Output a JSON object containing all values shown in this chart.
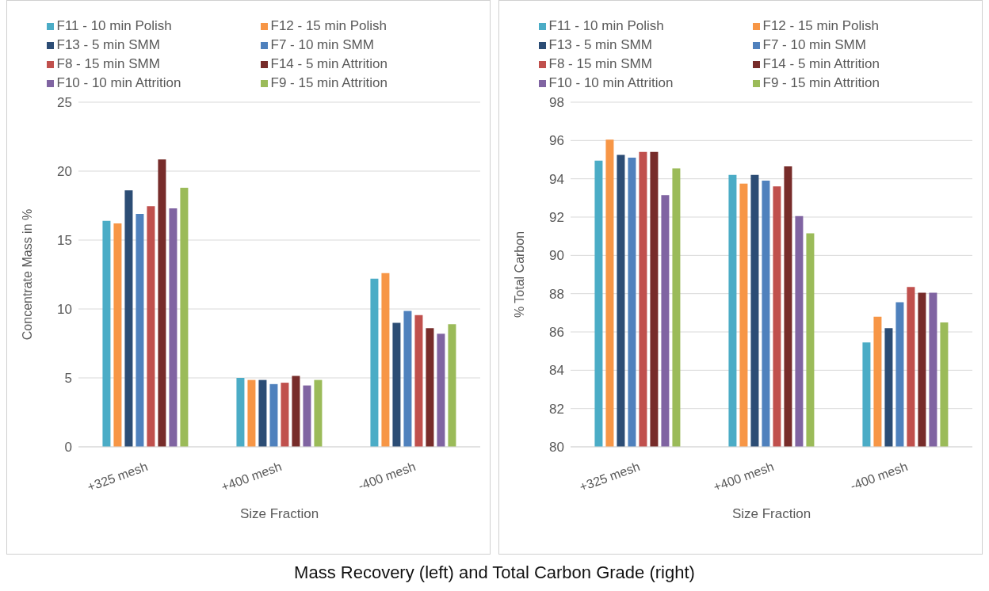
{
  "chart_data": [
    {
      "type": "bar",
      "xlabel": "Size Fraction",
      "ylabel": "Concentrate Mass in %",
      "categories": [
        "+325 mesh",
        "+400 mesh",
        "-400 mesh"
      ],
      "series": [
        {
          "name": "F11 - 10 min Polish",
          "color": "#4bacc6",
          "values": [
            16.4,
            5.0,
            12.2
          ]
        },
        {
          "name": "F12 - 15 min Polish",
          "color": "#f79646",
          "values": [
            16.2,
            4.85,
            12.6
          ]
        },
        {
          "name": "F13 - 5 min SMM",
          "color": "#2c4d75",
          "values": [
            18.6,
            4.85,
            9.0
          ]
        },
        {
          "name": "F7 - 10 min SMM",
          "color": "#4f81bd",
          "values": [
            16.9,
            4.55,
            9.85
          ]
        },
        {
          "name": "F8 - 15 min SMM",
          "color": "#c0504d",
          "values": [
            17.45,
            4.65,
            9.55
          ]
        },
        {
          "name": "F14 - 5 min Attrition",
          "color": "#772c2a",
          "values": [
            20.85,
            5.15,
            8.6
          ]
        },
        {
          "name": "F10 - 10 min Attrition",
          "color": "#8064a2",
          "values": [
            17.3,
            4.45,
            8.2
          ]
        },
        {
          "name": "F9 - 15 min Attrition",
          "color": "#9bbb59",
          "values": [
            18.8,
            4.85,
            8.9
          ]
        }
      ],
      "ylim": [
        0,
        25
      ],
      "yticks": [
        0,
        5,
        10,
        15,
        20,
        25
      ],
      "grid": "y",
      "legend": "top",
      "annotations": [
        "Mass Recovery (left) and Total Carbon Grade (right)"
      ]
    },
    {
      "type": "bar",
      "xlabel": "Size Fraction",
      "ylabel": "% Total Carbon",
      "categories": [
        "+325 mesh",
        "+400 mesh",
        "-400 mesh"
      ],
      "series": [
        {
          "name": "F11 - 10 min Polish",
          "color": "#4bacc6",
          "values": [
            94.95,
            94.2,
            85.45
          ]
        },
        {
          "name": "F12 - 15 min Polish",
          "color": "#f79646",
          "values": [
            96.05,
            93.75,
            86.8
          ]
        },
        {
          "name": "F13 - 5 min SMM",
          "color": "#2c4d75",
          "values": [
            95.25,
            94.2,
            86.2
          ]
        },
        {
          "name": "F7 - 10 min SMM",
          "color": "#4f81bd",
          "values": [
            95.1,
            93.9,
            87.55
          ]
        },
        {
          "name": "F8 - 15 min SMM",
          "color": "#c0504d",
          "values": [
            95.4,
            93.6,
            88.35
          ]
        },
        {
          "name": "F14 - 5 min Attrition",
          "color": "#772c2a",
          "values": [
            95.4,
            94.65,
            88.05
          ]
        },
        {
          "name": "F10 - 10 min Attrition",
          "color": "#8064a2",
          "values": [
            93.15,
            92.05,
            88.05
          ]
        },
        {
          "name": "F9 - 15 min Attrition",
          "color": "#9bbb59",
          "values": [
            94.55,
            91.15,
            86.5
          ]
        }
      ],
      "ylim": [
        80,
        98
      ],
      "yticks": [
        80,
        82,
        84,
        86,
        88,
        90,
        92,
        94,
        96,
        98
      ],
      "grid": "y",
      "legend": "top"
    }
  ]
}
